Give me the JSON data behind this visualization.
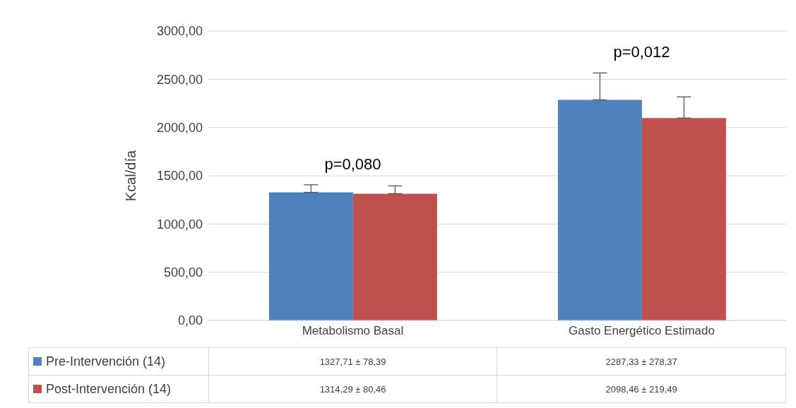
{
  "chart_data": {
    "type": "bar",
    "ylabel": "Kcal/día",
    "categories": [
      "Metabolismo Basal",
      "Gasto Energético Estimado"
    ],
    "series": [
      {
        "name": "Pre-Intervención (14)",
        "color": "#4f81bd",
        "values": [
          1327.71,
          2287.33
        ],
        "errors": [
          [
            1327.71,
            1406.1
          ],
          [
            2287.33,
            2565.7
          ]
        ],
        "value_labels": [
          "1327,71 ± 78,39",
          "2287,33 ± 278,37"
        ]
      },
      {
        "name": "Post-Intervención (14)",
        "color": "#c0504d",
        "values": [
          1314.29,
          2098.46
        ],
        "errors": [
          [
            1314.29,
            1394.75
          ],
          [
            2098.46,
            2317.95
          ]
        ],
        "value_labels": [
          "1314,29 ± 80,46",
          "2098,46 ± 219,49"
        ]
      }
    ],
    "ylim": [
      0,
      3000
    ],
    "yticks": [
      {
        "value": 0,
        "label": "0,00"
      },
      {
        "value": 500,
        "label": "500,00"
      },
      {
        "value": 1000,
        "label": "1000,00"
      },
      {
        "value": 1500,
        "label": "1500,00"
      },
      {
        "value": 2000,
        "label": "2000,00"
      },
      {
        "value": 2500,
        "label": "2500,00"
      },
      {
        "value": 3000,
        "label": "3000,00"
      }
    ],
    "grid": "y",
    "legend": "bottom",
    "annotations": [
      "p=0,080",
      "p=0,012"
    ]
  }
}
